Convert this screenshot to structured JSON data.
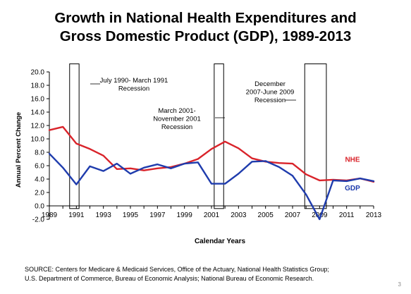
{
  "slide": {
    "title_line1": "Growth in National Health Expenditures and",
    "title_line2": "Gross Domestic Product (GDP), 1989-2013",
    "source_line1": "SOURCE: Centers for Medicare & Medicaid Services, Office of the Actuary, National Health Statistics Group;",
    "source_line2": "U.S. Department of Commerce, Bureau of Economic Analysis; National Bureau of Economic Research.",
    "slide_number": "3"
  },
  "chart_data": {
    "type": "line",
    "title": "",
    "xlabel": "Calendar Years",
    "ylabel": "Annual Percent Change",
    "x": [
      1989,
      1990,
      1991,
      1992,
      1993,
      1994,
      1995,
      1996,
      1997,
      1998,
      1999,
      2000,
      2001,
      2002,
      2003,
      2004,
      2005,
      2006,
      2007,
      2008,
      2009,
      2010,
      2011,
      2012,
      2013
    ],
    "x_ticks": [
      "1989",
      "1991",
      "1993",
      "1995",
      "1997",
      "1999",
      "2001",
      "2003",
      "2005",
      "2007",
      "2009",
      "2011",
      "2013"
    ],
    "ylim": [
      -2.0,
      20.0
    ],
    "y_ticks": [
      "-2.0",
      "0.0",
      "2.0",
      "4.0",
      "6.0",
      "8.0",
      "10.0",
      "12.0",
      "14.0",
      "16.0",
      "18.0",
      "20.0"
    ],
    "grid": false,
    "series": [
      {
        "name": "NHE",
        "color": "#d9232a",
        "values": [
          11.3,
          11.8,
          9.3,
          8.5,
          7.5,
          5.5,
          5.6,
          5.3,
          5.6,
          5.8,
          6.3,
          7.0,
          8.5,
          9.6,
          8.6,
          7.1,
          6.6,
          6.4,
          6.3,
          4.7,
          3.8,
          3.9,
          3.8,
          4.1,
          3.6
        ]
      },
      {
        "name": "GDP",
        "color": "#1f3cad",
        "values": [
          7.8,
          5.7,
          3.2,
          5.9,
          5.2,
          6.3,
          4.8,
          5.7,
          6.2,
          5.6,
          6.3,
          6.5,
          3.3,
          3.3,
          4.8,
          6.6,
          6.7,
          5.8,
          4.5,
          1.7,
          -2.0,
          3.8,
          3.7,
          4.1,
          3.7
        ]
      }
    ],
    "recessions": [
      {
        "label": "July 1990- March 1991 Recession",
        "label_lines": [
          "July 1990- March 1991",
          "Recession"
        ],
        "start": 1990.5,
        "end": 1991.2
      },
      {
        "label": "March 2001- November 2001 Recession",
        "label_lines": [
          "March 2001-",
          "November 2001",
          "Recession"
        ],
        "start": 2001.2,
        "end": 2001.9
      },
      {
        "label": "December 2007-June 2009 Recession",
        "label_lines": [
          "December",
          "2007-June 2009",
          "Recession"
        ],
        "start": 2007.9,
        "end": 2009.5
      }
    ]
  }
}
